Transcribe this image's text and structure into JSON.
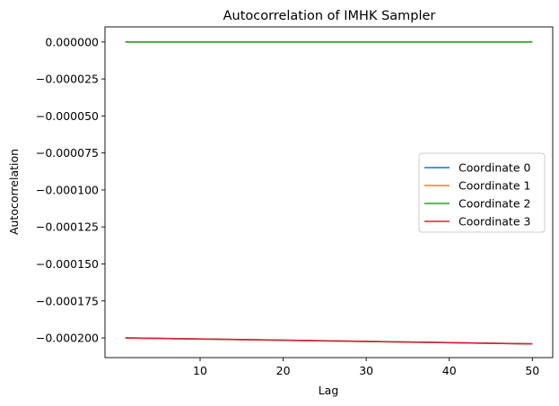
{
  "chart_data": {
    "type": "line",
    "title": "Autocorrelation of IMHK Sampler",
    "xlabel": "Lag",
    "ylabel": "Autocorrelation",
    "xlim": [
      -1.45,
      52.45
    ],
    "ylim": [
      -0.0002133,
      1.02e-05
    ],
    "xticks": [
      10,
      20,
      30,
      40,
      50
    ],
    "xtick_labels": [
      "10",
      "20",
      "30",
      "40",
      "50"
    ],
    "yticks": [
      0,
      -2.5e-05,
      -5e-05,
      -7.5e-05,
      -0.0001,
      -0.000125,
      -0.00015,
      -0.000175,
      -0.0002
    ],
    "ytick_labels": [
      "0.000000",
      "−0.000025",
      "−0.000050",
      "−0.000075",
      "−0.000100",
      "−0.000125",
      "−0.000150",
      "−0.000175",
      "−0.000200"
    ],
    "grid": false,
    "legend": "center-right",
    "series": [
      {
        "name": "Coordinate 0",
        "color": "#1f77b4",
        "x": [
          1,
          50
        ],
        "values": [
          -0.0002,
          -0.000204
        ]
      },
      {
        "name": "Coordinate 1",
        "color": "#ff7f0e",
        "x": [
          1,
          50
        ],
        "values": [
          0,
          0
        ]
      },
      {
        "name": "Coordinate 2",
        "color": "#2ca02c",
        "x": [
          1,
          50
        ],
        "values": [
          0,
          0
        ]
      },
      {
        "name": "Coordinate 3",
        "color": "#d62728",
        "x": [
          1,
          50
        ],
        "values": [
          -0.0002,
          -0.000204
        ]
      }
    ]
  }
}
